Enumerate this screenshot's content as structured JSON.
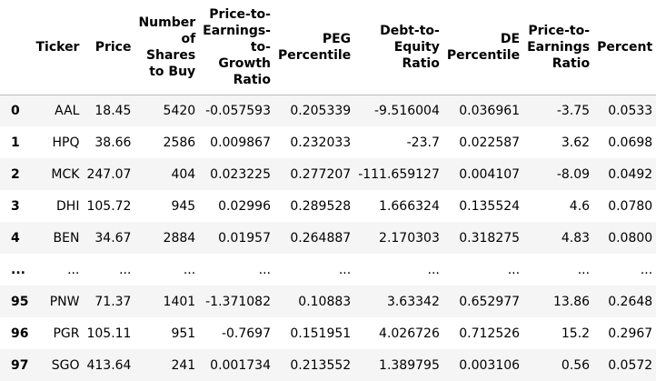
{
  "table": {
    "columns": [
      {
        "key": "index",
        "label": ""
      },
      {
        "key": "ticker",
        "label": "Ticker"
      },
      {
        "key": "price",
        "label": "Price"
      },
      {
        "key": "shares",
        "label": "Number of Shares to Buy"
      },
      {
        "key": "pegr",
        "label": "Price-to-Earnings-to-Growth Ratio"
      },
      {
        "key": "pegp",
        "label": "PEG Percentile"
      },
      {
        "key": "de",
        "label": "Debt-to-Equity Ratio"
      },
      {
        "key": "dep",
        "label": "DE Percentile"
      },
      {
        "key": "pe",
        "label": "Price-to-Earnings Ratio"
      },
      {
        "key": "pep",
        "label": "Percent"
      }
    ],
    "rows": [
      [
        "0",
        "AAL",
        "18.45",
        "5420",
        "-0.057593",
        "0.205339",
        "-9.516004",
        "0.036961",
        "-3.75",
        "0.0533"
      ],
      [
        "1",
        "HPQ",
        "38.66",
        "2586",
        "0.009867",
        "0.232033",
        "-23.7",
        "0.022587",
        "3.62",
        "0.0698"
      ],
      [
        "2",
        "MCK",
        "247.07",
        "404",
        "0.023225",
        "0.277207",
        "-111.659127",
        "0.004107",
        "-8.09",
        "0.0492"
      ],
      [
        "3",
        "DHI",
        "105.72",
        "945",
        "0.02996",
        "0.289528",
        "1.666324",
        "0.135524",
        "4.6",
        "0.0780"
      ],
      [
        "4",
        "BEN",
        "34.67",
        "2884",
        "0.01957",
        "0.264887",
        "2.170303",
        "0.318275",
        "4.83",
        "0.0800"
      ],
      [
        "...",
        "...",
        "...",
        "...",
        "...",
        "...",
        "...",
        "...",
        "...",
        "..."
      ],
      [
        "95",
        "PNW",
        "71.37",
        "1401",
        "-1.371082",
        "0.10883",
        "3.63342",
        "0.652977",
        "13.86",
        "0.2648"
      ],
      [
        "96",
        "PGR",
        "105.11",
        "951",
        "-0.7697",
        "0.151951",
        "4.026726",
        "0.712526",
        "15.2",
        "0.2967"
      ],
      [
        "97",
        "SGO",
        "413.64",
        "241",
        "0.001734",
        "0.213552",
        "1.389795",
        "0.003106",
        "0.56",
        "0.0572"
      ]
    ]
  }
}
